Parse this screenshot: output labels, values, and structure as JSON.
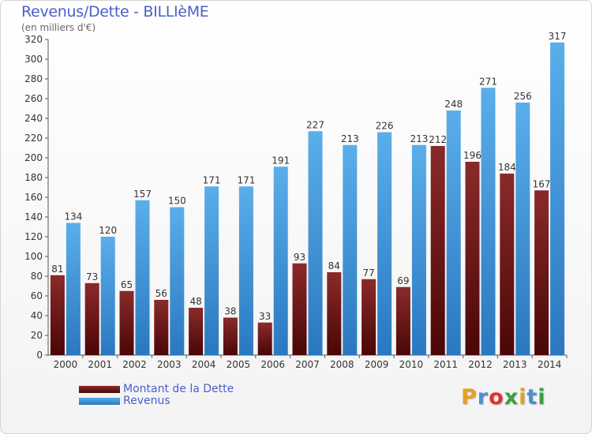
{
  "chart_data": {
    "type": "bar",
    "title": "Revenus/Dette - BILLIèME",
    "subtitle": "(en milliers d'€)",
    "categories": [
      "2000",
      "2001",
      "2002",
      "2003",
      "2004",
      "2005",
      "2006",
      "2007",
      "2008",
      "2009",
      "2010",
      "2011",
      "2012",
      "2013",
      "2014"
    ],
    "series": [
      {
        "name": "Montant de la Dette",
        "color": "#7a1a1a",
        "values": [
          81,
          73,
          65,
          56,
          48,
          38,
          33,
          93,
          84,
          77,
          69,
          212,
          196,
          184,
          167
        ]
      },
      {
        "name": "Revenus",
        "color": "#4aa0e0",
        "values": [
          134,
          120,
          157,
          150,
          171,
          171,
          191,
          227,
          213,
          226,
          213,
          248,
          271,
          256,
          317
        ]
      }
    ],
    "ylim": [
      0,
      320
    ],
    "yticks": [
      0,
      20,
      40,
      60,
      80,
      100,
      120,
      140,
      160,
      180,
      200,
      220,
      240,
      260,
      280,
      300,
      320
    ],
    "grid": false,
    "legend_position": "bottom-left"
  },
  "logo": {
    "letters": [
      "P",
      "r",
      "o",
      "x",
      "i",
      "t",
      "i"
    ],
    "colors": [
      "#e8a020",
      "#4a90d0",
      "#e03030",
      "#3aa040",
      "#e8a020",
      "#4a90d0",
      "#3aa040"
    ]
  }
}
